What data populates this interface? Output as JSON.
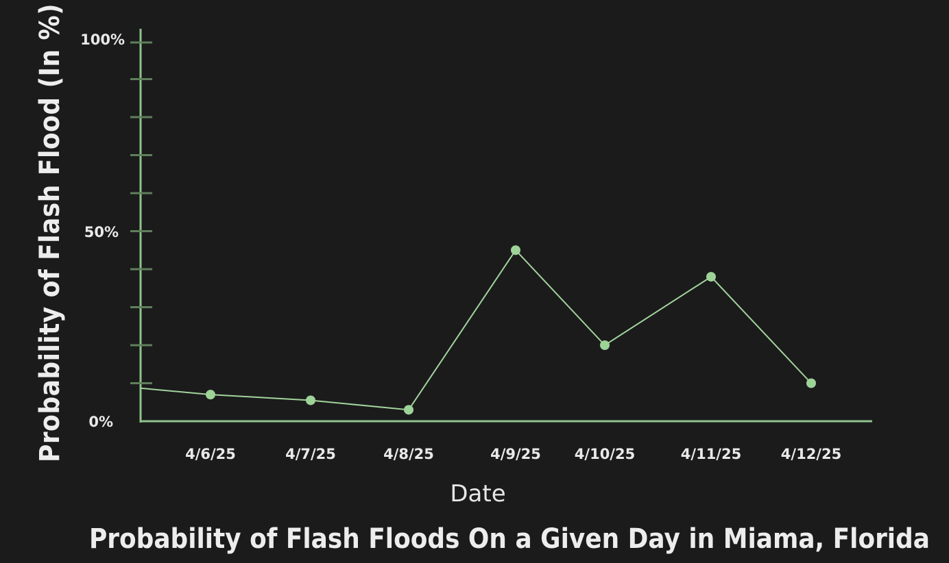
{
  "chart_data": {
    "type": "line",
    "title": "Probability of Flash Floods On a Given Day in Miama, Florida",
    "xlabel": "Date",
    "ylabel": "Probability of Flash Flood (In %)",
    "ylim": [
      0,
      100
    ],
    "y_tick_labels": [
      "0%",
      "50%",
      "100%"
    ],
    "categories": [
      "4/6/25",
      "4/7/25",
      "4/8/25",
      "4/9/25",
      "4/10/25",
      "4/11/25",
      "4/12/25"
    ],
    "series": [
      {
        "values": [
          7,
          5.5,
          3,
          45,
          20,
          38,
          10
        ]
      }
    ],
    "line_start_value": 8.7,
    "grid": false,
    "colors": {
      "background": "#1b1b1c",
      "axis": "#8fc48a",
      "tick": "#5f7f5c",
      "line": "#a3d49c",
      "point": "#9ed398",
      "text": "#eaeaea"
    }
  }
}
